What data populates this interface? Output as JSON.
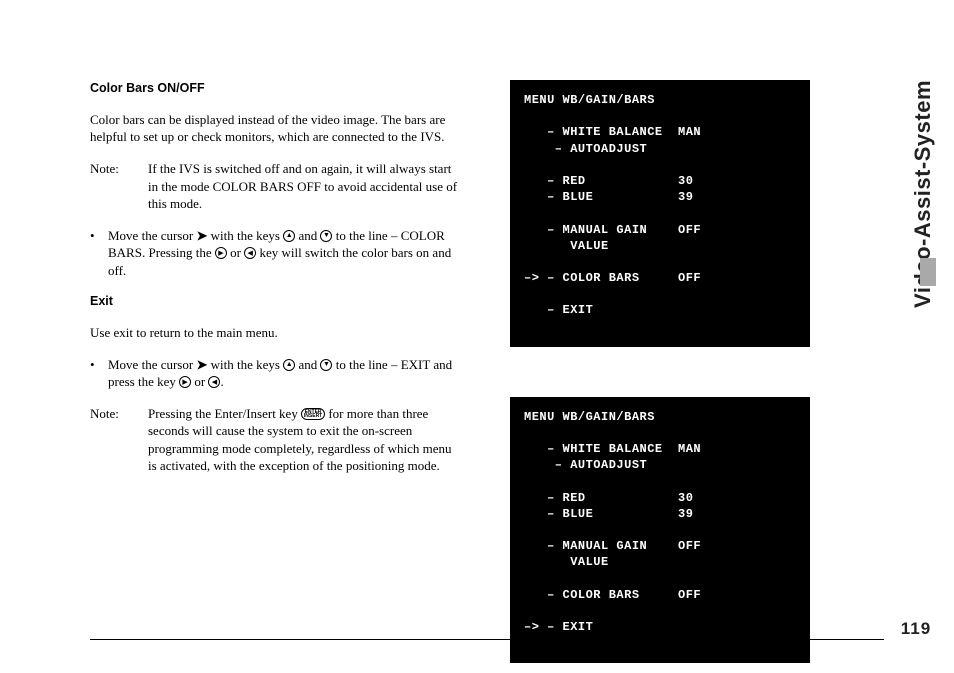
{
  "sidebar": {
    "title": "Video-Assist-System",
    "page_number": "119"
  },
  "left": {
    "h_color_bars": "Color Bars ON/OFF",
    "p_color_bars_intro": "Color bars can be displayed instead of the video image. The bars are helpful to set up or check monitors, which are connected to the IVS.",
    "note1_label": "Note:",
    "note1_body": "If the IVS is switched off and on again, it will always start in the mode COLOR BARS OFF to avoid accidental use of this mode.",
    "bullet1_a": "Move the cursor ",
    "bullet1_b": " with the keys ",
    "bullet1_c": " and ",
    "bullet1_d": " to the line – COLOR BARS. Pressing the ",
    "bullet1_e": " or ",
    "bullet1_f": " key will switch the color bars on and off.",
    "h_exit": "Exit",
    "p_exit_intro": "Use exit to return to the main menu.",
    "bullet2_a": "Move the cursor ",
    "bullet2_b": " with the keys ",
    "bullet2_c": " and ",
    "bullet2_d": " to the line – EXIT and press the key ",
    "bullet2_e": " or ",
    "bullet2_f": ".",
    "note2_label": "Note:",
    "note2_body_a": "Pressing the Enter/Insert key ",
    "note2_body_b": " for more than three seconds will cause the system to exit the on-screen programming mode completely, regardless of which menu is activated, with the exception of the positioning mode.",
    "icons": {
      "cursor": "➤",
      "up": "▲",
      "down": "▼",
      "right": "▶",
      "left": "◀",
      "enter": "ENTER\nINSERT"
    }
  },
  "menu1": {
    "title": "MENU WB/GAIN/BARS",
    "line_wb": "   – WHITE BALANCE  MAN",
    "line_auto": "    – AUTOADJUST",
    "line_red": "   – RED            30",
    "line_blue": "   – BLUE           39",
    "line_gain": "   – MANUAL GAIN    OFF",
    "line_value": "      VALUE",
    "line_bars": "–> – COLOR BARS     OFF",
    "line_exit": "   – EXIT"
  },
  "menu2": {
    "title": "MENU WB/GAIN/BARS",
    "line_wb": "   – WHITE BALANCE  MAN",
    "line_auto": "    – AUTOADJUST",
    "line_red": "   – RED            30",
    "line_blue": "   – BLUE           39",
    "line_gain": "   – MANUAL GAIN    OFF",
    "line_value": "      VALUE",
    "line_bars": "   – COLOR BARS     OFF",
    "line_exit": "–> – EXIT"
  }
}
